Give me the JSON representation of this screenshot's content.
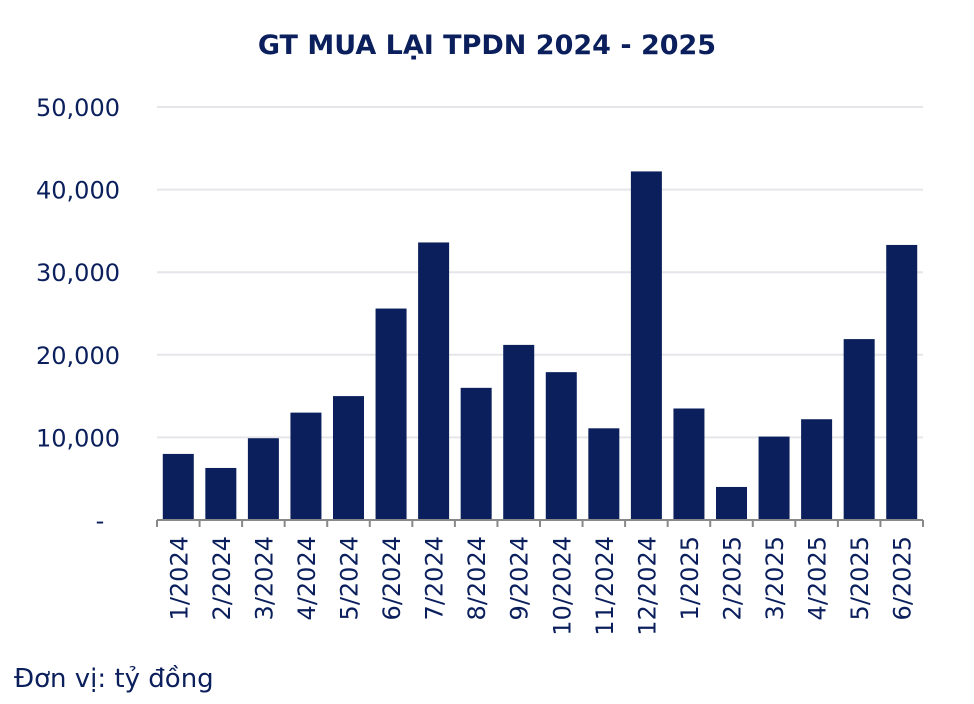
{
  "chart_data": {
    "type": "bar",
    "title": "GT MUA LẠI TPDN 2024 - 2025",
    "categories": [
      "1/2024",
      "2/2024",
      "3/2024",
      "4/2024",
      "5/2024",
      "6/2024",
      "7/2024",
      "8/2024",
      "9/2024",
      "10/2024",
      "11/2024",
      "12/2024",
      "1/2025",
      "2/2025",
      "3/2025",
      "4/2025",
      "5/2025",
      "6/2025"
    ],
    "values": [
      8000,
      6300,
      9900,
      13000,
      15000,
      25600,
      33600,
      16000,
      21200,
      17900,
      11100,
      42200,
      13500,
      4000,
      10100,
      12200,
      21900,
      33300
    ],
    "ylim": [
      0,
      50000
    ],
    "yticks": [
      {
        "value": 0,
        "label": "-"
      },
      {
        "value": 10000,
        "label": "10,000"
      },
      {
        "value": 20000,
        "label": "20,000"
      },
      {
        "value": 30000,
        "label": "30,000"
      },
      {
        "value": 40000,
        "label": "40,000"
      },
      {
        "value": 50000,
        "label": "50,000"
      }
    ],
    "grid": true,
    "bar_color": "#0a1f5c",
    "grid_color": "#e6e6ea",
    "axis_color": "#888888"
  },
  "note": "Đơn vị: tỷ đồng"
}
